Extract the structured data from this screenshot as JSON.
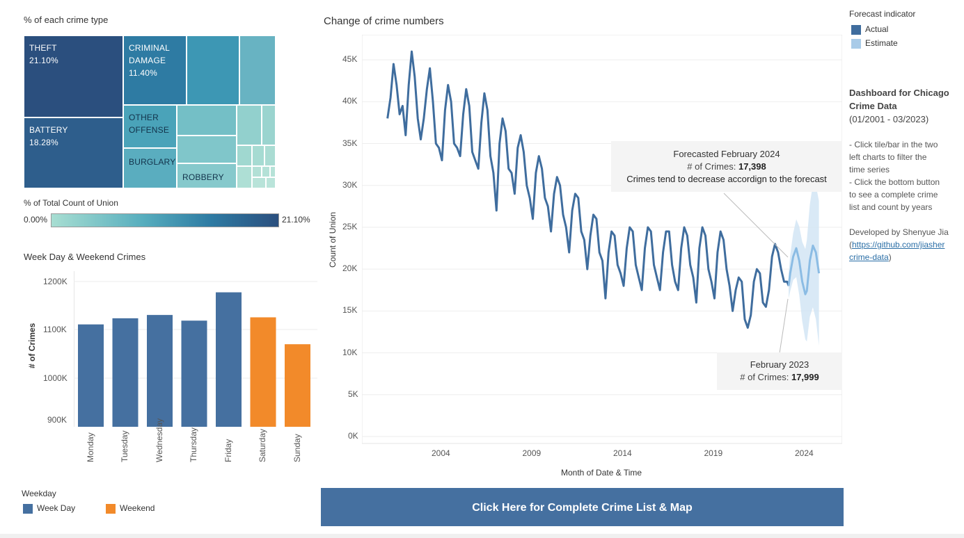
{
  "treemap": {
    "title": "% of each crime type",
    "tiles": [
      {
        "name": "THEFT",
        "pct": "21.10%"
      },
      {
        "name": "BATTERY",
        "pct": "18.28%"
      },
      {
        "name": "CRIMINAL DAMAGE",
        "line1": "CRIMINAL",
        "line2": "DAMAGE",
        "pct": "11.40%"
      },
      {
        "name": "OTHER OFFENSE",
        "line1": "OTHER",
        "line2": "OFFENSE"
      },
      {
        "name": "BURGLARY"
      },
      {
        "name": "ROBBERY"
      }
    ],
    "colors": {
      "dark": "#2b4f7e",
      "mid": "#2f86a8",
      "light": "#a8ded2"
    }
  },
  "color_legend": {
    "title": "% of Total Count of Union",
    "min": "0.00%",
    "max": "21.10%"
  },
  "weekday_chart": {
    "title": "Week Day & Weekend Crimes",
    "ylabel": "# of Crimes",
    "ticks": [
      "1200K",
      "1100K",
      "1000K",
      "900K"
    ]
  },
  "weekday_legend": {
    "title": "Weekday",
    "items": [
      {
        "label": "Week Day",
        "color": "#4570a0"
      },
      {
        "label": "Weekend",
        "color": "#f28a2a"
      }
    ]
  },
  "line_chart_header": {
    "title": "Change of crime numbers",
    "xlabel": "Month of Date & Time",
    "ylabel": "Count of Union",
    "yticks": [
      "45K",
      "40K",
      "35K",
      "30K",
      "25K",
      "20K",
      "15K",
      "10K",
      "5K",
      "0K"
    ],
    "xticks": [
      "2004",
      "2009",
      "2014",
      "2019",
      "2024"
    ]
  },
  "forecast_legend": {
    "title": "Forecast indicator",
    "items": [
      {
        "label": "Actual",
        "color": "#3f6d9e"
      },
      {
        "label": "Estimate",
        "color": "#a9cbe8"
      }
    ]
  },
  "tooltip_forecast": {
    "title": "Forecasted February 2024",
    "label": "# of Crimes:",
    "value": "17,398",
    "note": "Crimes tend to decrease accordign to the forecast"
  },
  "tooltip_actual": {
    "title": "February 2023",
    "label": "# of Crimes:",
    "value": "17,999"
  },
  "sidebar": {
    "heading1": "Dashboard for Chicago",
    "heading2": "Crime Data",
    "heading3": "(01/2001 - 03/2023)",
    "tip1a": "- Click tile/bar in the two",
    "tip1b": "left charts to filter the",
    "tip1c": "time series",
    "tip2a": "- Click the bottom button",
    "tip2b": "to see a complete crime",
    "tip2c": "list and count by years",
    "dev": "Developed by Shenyue Jia",
    "link1": "https://github.com/jiasher",
    "link2": "crime-data"
  },
  "cta_button": {
    "label": "Click Here for Complete Crime List & Map",
    "color": "#4570a0"
  },
  "chart_data": [
    {
      "type": "bar",
      "title": "Week Day & Weekend Crimes",
      "ylabel": "# of Crimes",
      "categories": [
        "Monday",
        "Tuesday",
        "Wednesday",
        "Thursday",
        "Friday",
        "Saturday",
        "Sunday"
      ],
      "values": [
        1097000,
        1110000,
        1117000,
        1105000,
        1165000,
        1112000,
        1055000
      ],
      "group": [
        "Week Day",
        "Week Day",
        "Week Day",
        "Week Day",
        "Week Day",
        "Weekend",
        "Weekend"
      ],
      "ylim": [
        880000,
        1210000
      ]
    },
    {
      "type": "line",
      "title": "Change of crime numbers",
      "xlabel": "Month of Date & Time",
      "ylabel": "Count of Union",
      "ylim": [
        0,
        48000
      ],
      "series": [
        {
          "name": "Actual",
          "x": [
            "2001-01",
            "2001-03",
            "2001-05",
            "2001-07",
            "2001-09",
            "2001-11",
            "2002-01",
            "2002-03",
            "2002-05",
            "2002-07",
            "2002-09",
            "2002-11",
            "2003-01",
            "2003-03",
            "2003-05",
            "2003-07",
            "2003-09",
            "2003-11",
            "2004-01",
            "2004-03",
            "2004-05",
            "2004-07",
            "2004-09",
            "2004-11",
            "2005-01",
            "2005-03",
            "2005-05",
            "2005-07",
            "2005-09",
            "2005-11",
            "2006-01",
            "2006-03",
            "2006-05",
            "2006-07",
            "2006-09",
            "2006-11",
            "2007-01",
            "2007-03",
            "2007-05",
            "2007-07",
            "2007-09",
            "2007-11",
            "2008-01",
            "2008-03",
            "2008-05",
            "2008-07",
            "2008-09",
            "2008-11",
            "2009-01",
            "2009-03",
            "2009-05",
            "2009-07",
            "2009-09",
            "2009-11",
            "2010-01",
            "2010-03",
            "2010-05",
            "2010-07",
            "2010-09",
            "2010-11",
            "2011-01",
            "2011-03",
            "2011-05",
            "2011-07",
            "2011-09",
            "2011-11",
            "2012-01",
            "2012-03",
            "2012-05",
            "2012-07",
            "2012-09",
            "2012-11",
            "2013-01",
            "2013-03",
            "2013-05",
            "2013-07",
            "2013-09",
            "2013-11",
            "2014-01",
            "2014-03",
            "2014-05",
            "2014-07",
            "2014-09",
            "2014-11",
            "2015-01",
            "2015-03",
            "2015-05",
            "2015-07",
            "2015-09",
            "2015-11",
            "2016-01",
            "2016-03",
            "2016-05",
            "2016-07",
            "2016-09",
            "2016-11",
            "2017-01",
            "2017-03",
            "2017-05",
            "2017-07",
            "2017-09",
            "2017-11",
            "2018-01",
            "2018-03",
            "2018-05",
            "2018-07",
            "2018-09",
            "2018-11",
            "2019-01",
            "2019-03",
            "2019-05",
            "2019-07",
            "2019-09",
            "2019-11",
            "2020-01",
            "2020-03",
            "2020-05",
            "2020-07",
            "2020-09",
            "2020-11",
            "2021-01",
            "2021-03",
            "2021-05",
            "2021-07",
            "2021-09",
            "2021-11",
            "2022-01",
            "2022-03",
            "2022-05",
            "2022-07",
            "2022-09",
            "2022-11",
            "2023-01",
            "2023-02"
          ],
          "y": [
            38000,
            40500,
            44500,
            42000,
            38500,
            39500,
            36000,
            42000,
            46000,
            43000,
            38000,
            35500,
            38000,
            41500,
            44000,
            40000,
            35000,
            34500,
            33000,
            39000,
            42000,
            40000,
            35000,
            34500,
            33500,
            38500,
            41500,
            39500,
            34000,
            33000,
            32000,
            37500,
            41000,
            39000,
            33500,
            31500,
            27000,
            35000,
            38000,
            36500,
            32000,
            31500,
            29000,
            34500,
            36000,
            34000,
            30000,
            28500,
            26000,
            31500,
            33500,
            32000,
            28500,
            27500,
            24500,
            29000,
            31000,
            30000,
            26500,
            25000,
            22000,
            27000,
            29000,
            28500,
            24500,
            23500,
            20000,
            24000,
            26500,
            26000,
            22000,
            21000,
            16500,
            22000,
            24500,
            24000,
            20500,
            19500,
            18000,
            22500,
            25000,
            24500,
            20500,
            19000,
            17500,
            22500,
            25000,
            24500,
            20500,
            19000,
            17500,
            22000,
            24500,
            24500,
            20500,
            18500,
            17500,
            22500,
            25000,
            24000,
            20500,
            19000,
            16000,
            22500,
            25000,
            24000,
            20000,
            18500,
            16500,
            22000,
            24500,
            23500,
            20000,
            18000,
            15000,
            17500,
            19000,
            18500,
            14000,
            13000,
            14500,
            18500,
            20000,
            19500,
            16000,
            15500,
            17500,
            21500,
            23000,
            22000,
            20000,
            18500,
            18500,
            17999
          ]
        },
        {
          "name": "Estimate",
          "x": [
            "2023-03",
            "2023-05",
            "2023-07",
            "2023-09",
            "2023-11",
            "2024-01",
            "2024-02",
            "2024-04",
            "2024-06",
            "2024-08",
            "2024-10"
          ],
          "y": [
            19500,
            21500,
            22500,
            21000,
            18500,
            17000,
            17398,
            21000,
            22800,
            22000,
            19500
          ]
        }
      ]
    }
  ]
}
